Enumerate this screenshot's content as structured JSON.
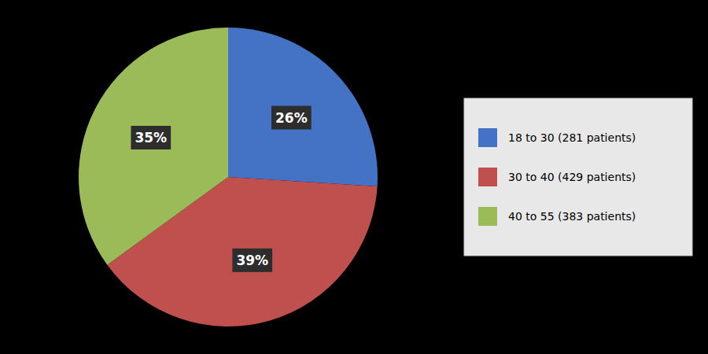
{
  "chart_data": {
    "type": "pie",
    "categories": [
      "18 to 30 (281 patients)",
      "30 to 40 (429 patients)",
      "40 to 55 (383 patients)"
    ],
    "values": [
      26,
      39,
      35
    ],
    "value_labels": [
      "26%",
      "39%",
      "35%"
    ],
    "colors": [
      "#4472C4",
      "#C0504D",
      "#9BBB59"
    ],
    "data_labels": true,
    "legend": "right"
  }
}
